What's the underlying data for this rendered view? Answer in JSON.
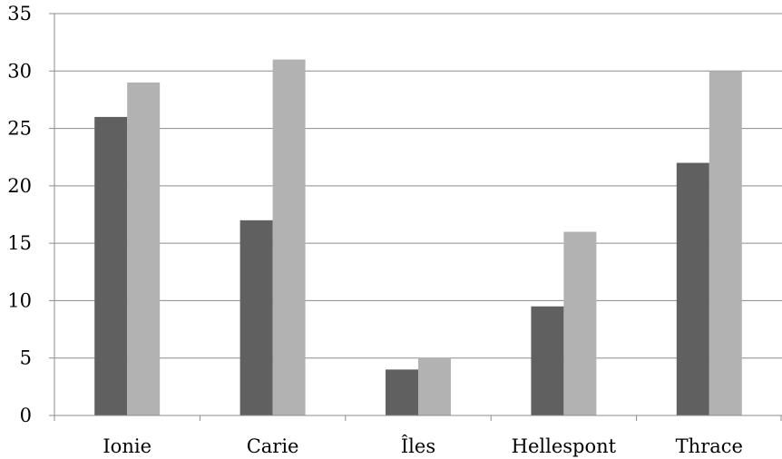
{
  "chart_data": {
    "type": "bar",
    "title": "",
    "xlabel": "",
    "ylabel": "",
    "categories": [
      "Ionie",
      "Carie",
      "Îles",
      "Hellespont",
      "Thrace"
    ],
    "series": [
      {
        "values": [
          26,
          17,
          4,
          9.5,
          22
        ],
        "color": "#606060"
      },
      {
        "values": [
          29,
          31,
          5,
          16,
          30
        ],
        "color": "#b2b2b2"
      }
    ],
    "ylim": [
      0,
      35
    ],
    "yticks": [
      0,
      5,
      10,
      15,
      20,
      25,
      30,
      35
    ],
    "ytick_labels": [
      "0",
      "5",
      "10",
      "15",
      "20",
      "25",
      "30",
      "35"
    ],
    "grid": true,
    "legend": "none"
  }
}
